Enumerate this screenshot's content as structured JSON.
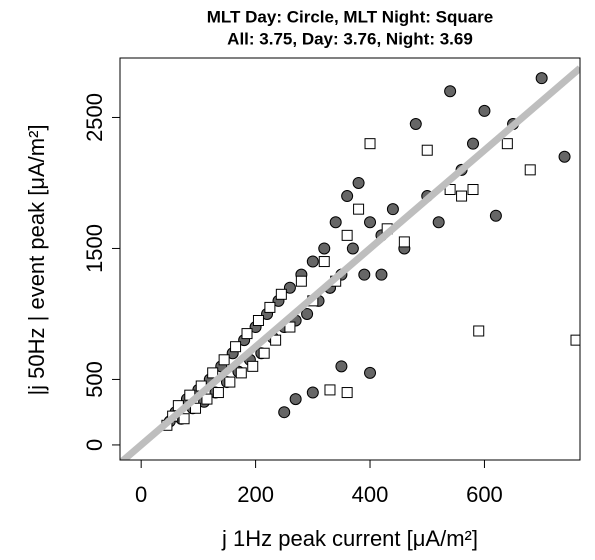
{
  "chart_data": {
    "type": "scatter",
    "title": "MLT Day: Circle, MLT Night: Square",
    "subtitle": "All:  3.75, Day:  3.76, Night:  3.69",
    "x_label": "j 1Hz peak current [μA/m²]",
    "y_label": "|j 50Hz | event peak [μA/m²]",
    "xlim": [
      -37,
      767
    ],
    "ylim": [
      -115,
      2954
    ],
    "xticks": [
      0,
      200,
      400,
      600
    ],
    "yticks": [
      0,
      500,
      1500,
      2500
    ],
    "line_slope": 3.75,
    "line_color": "#bebebe",
    "series": [
      {
        "name": "MLT Day",
        "marker": "circle",
        "color": "#666666",
        "x": [
          50,
          60,
          70,
          80,
          90,
          100,
          110,
          120,
          130,
          140,
          150,
          160,
          170,
          180,
          190,
          200,
          210,
          220,
          230,
          240,
          250,
          260,
          270,
          280,
          290,
          300,
          310,
          320,
          330,
          340,
          350,
          360,
          370,
          380,
          390,
          400,
          420,
          440,
          460,
          480,
          500,
          520,
          540,
          560,
          580,
          600,
          620,
          650,
          700,
          740,
          270,
          300,
          350,
          400,
          420,
          250,
          330
        ],
        "values": [
          180,
          250,
          200,
          350,
          280,
          420,
          330,
          500,
          400,
          600,
          480,
          700,
          560,
          800,
          650,
          900,
          700,
          1000,
          820,
          1100,
          900,
          1200,
          950,
          1300,
          1000,
          1400,
          1100,
          1500,
          1200,
          1700,
          1300,
          1900,
          1500,
          2000,
          1300,
          1700,
          1600,
          1800,
          1500,
          2450,
          1900,
          1700,
          2700,
          2100,
          2300,
          2550,
          1750,
          2450,
          2800,
          2200,
          350,
          400,
          600,
          550,
          1300,
          250,
          1200
        ]
      },
      {
        "name": "MLT Night",
        "marker": "square",
        "color": "#ffffff",
        "x": [
          45,
          55,
          65,
          75,
          85,
          95,
          105,
          115,
          125,
          135,
          145,
          155,
          165,
          175,
          185,
          195,
          205,
          215,
          225,
          235,
          245,
          260,
          280,
          300,
          320,
          340,
          360,
          380,
          400,
          430,
          460,
          500,
          540,
          560,
          580,
          590,
          640,
          680,
          760,
          330,
          360
        ],
        "values": [
          150,
          220,
          300,
          200,
          380,
          280,
          450,
          350,
          550,
          400,
          650,
          480,
          750,
          550,
          850,
          600,
          950,
          700,
          1050,
          800,
          1150,
          900,
          1250,
          1100,
          1400,
          1250,
          1600,
          1800,
          2300,
          1650,
          1550,
          2250,
          1950,
          1900,
          1950,
          870,
          2300,
          2100,
          800,
          420,
          400
        ]
      }
    ]
  }
}
